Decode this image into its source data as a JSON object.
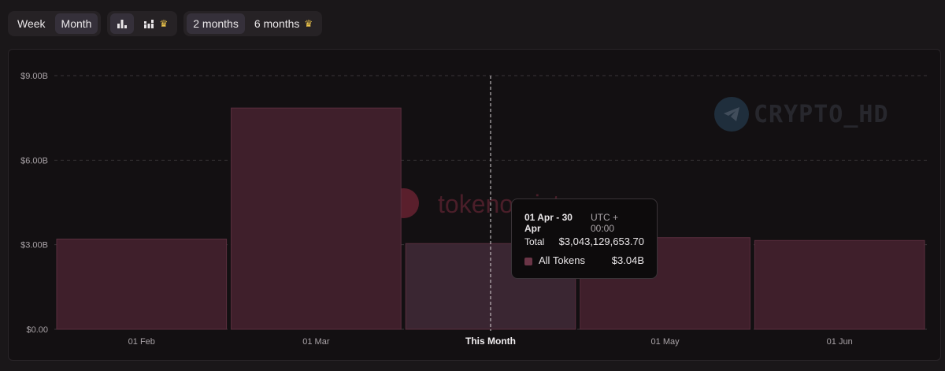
{
  "toolbar": {
    "period": {
      "week": "Week",
      "month": "Month",
      "selected": "Month"
    },
    "view_icons": [
      "bar-chart-icon",
      "stacked-bar-chart-icon",
      "crown-icon"
    ],
    "range": {
      "two_months": "2 months",
      "six_months": "6 months",
      "selected": "2 months"
    }
  },
  "watermarks": {
    "telegram_text": "CRYPTO_HD",
    "brand_text": "tokenomist"
  },
  "tooltip": {
    "range": "01 Apr - 30 Apr",
    "timezone": "UTC + 00:00",
    "total_label": "Total",
    "total_value": "$3,043,129,653.70",
    "series_label": "All Tokens",
    "series_value": "$3.04B"
  },
  "chart_data": {
    "type": "bar",
    "categories": [
      "01 Feb",
      "01 Mar",
      "This Month",
      "01 May",
      "01 Jun"
    ],
    "values": [
      3.2,
      7.85,
      3.04,
      3.25,
      3.15
    ],
    "highlight_index": 2,
    "y_ticks": [
      "$0.00",
      "$3.00B",
      "$6.00B",
      "$9.00B"
    ],
    "y_tick_values": [
      0,
      3,
      6,
      9
    ],
    "ylim": [
      0,
      9
    ],
    "grid": true,
    "colors": {
      "bar": "#3f1f2b",
      "bar_highlight": "#3a2632",
      "bar_border": "#5a2e3e",
      "grid": "#3a3438"
    }
  }
}
